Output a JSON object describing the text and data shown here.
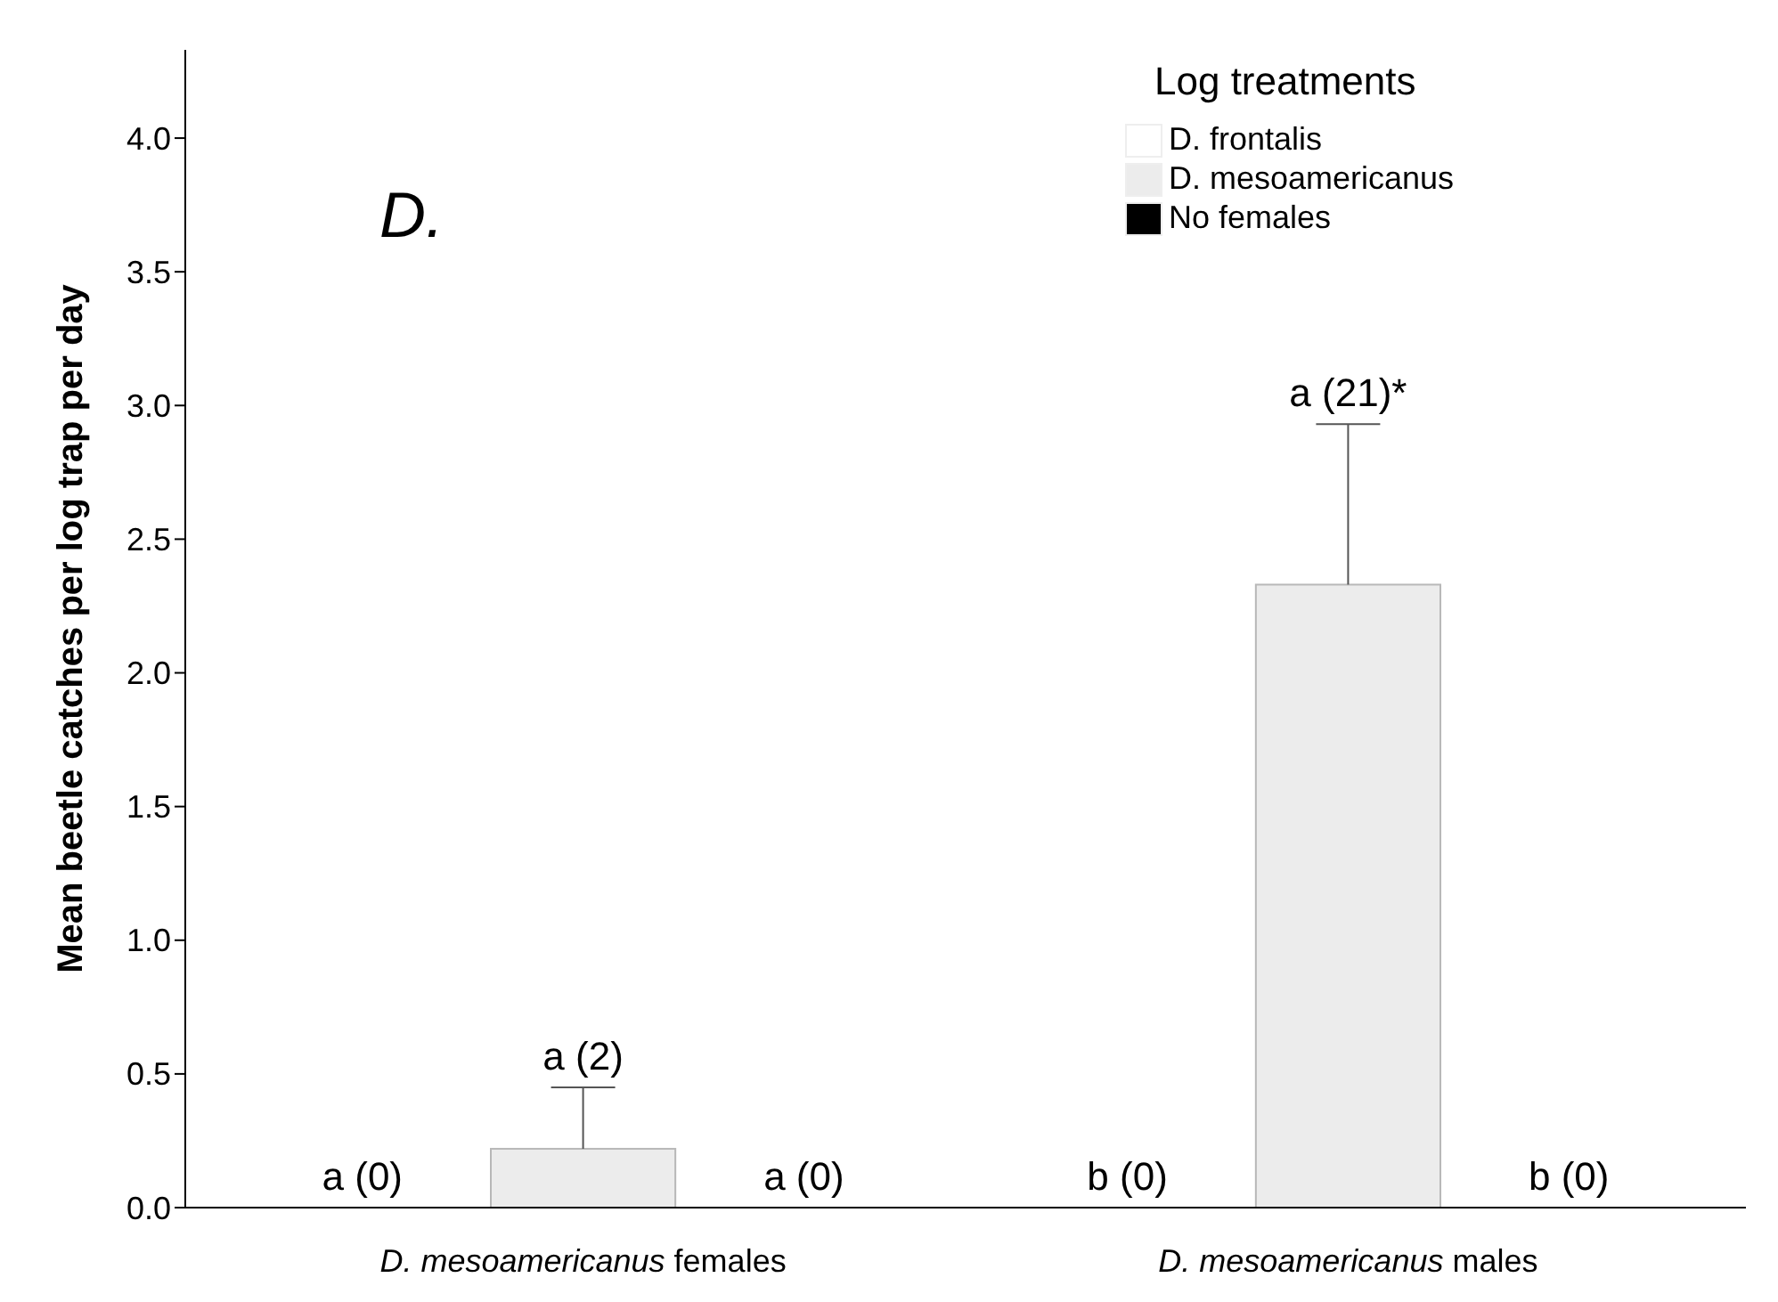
{
  "chart_data": {
    "type": "bar",
    "ylabel": "Mean beetle catches per log trap per day",
    "legend_title": "Log treatments",
    "legend": "top right",
    "categories": [
      "D. mesoamericanus females",
      "D. mesoamericanus males"
    ],
    "ylim": [
      0,
      4.33
    ],
    "yticks": [
      {
        "value": 0,
        "label": "0.0"
      },
      {
        "value": 0.5,
        "label": "0.5"
      },
      {
        "value": 1,
        "label": "1.0"
      },
      {
        "value": 1.5,
        "label": "1.5"
      },
      {
        "value": 2,
        "label": "2.0"
      },
      {
        "value": 2.5,
        "label": "2.5"
      },
      {
        "value": 3,
        "label": "3.0"
      },
      {
        "value": 3.5,
        "label": "3.5"
      },
      {
        "value": 4,
        "label": "4.0"
      }
    ],
    "annotations": [
      "D.",
      "a (0)",
      "a (2)",
      "a (0)",
      "b (0)",
      "a (21)*",
      "b (0)"
    ],
    "series": [
      {
        "name": "D. frontalis",
        "color": "#ffffff",
        "values": [
          0,
          0
        ]
      },
      {
        "name": "D. mesoamericanus",
        "color": "#ececec",
        "values": [
          0.22,
          2.33
        ],
        "errors": [
          [
            0.22,
            0.45
          ],
          [
            2.33,
            2.93
          ]
        ]
      },
      {
        "name": "No females",
        "color": "#000000",
        "values": [
          0,
          0
        ]
      }
    ]
  }
}
